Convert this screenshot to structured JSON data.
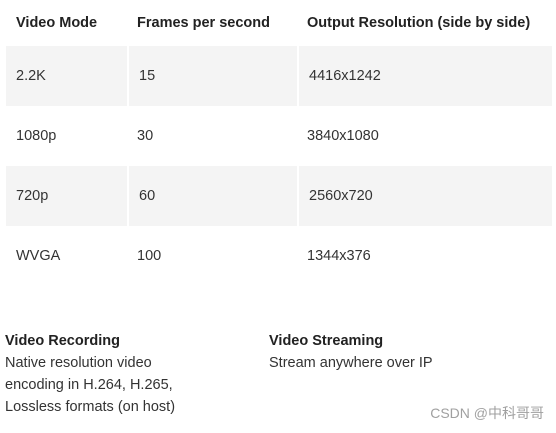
{
  "table": {
    "headers": [
      "Video Mode",
      "Frames per second",
      "Output Resolution (side by side)"
    ],
    "rows": [
      [
        "2.2K",
        "15",
        "4416x1242"
      ],
      [
        "1080p",
        "30",
        "3840x1080"
      ],
      [
        "720p",
        "60",
        "2560x720"
      ],
      [
        "WVGA",
        "100",
        "1344x376"
      ]
    ]
  },
  "features": {
    "recording": {
      "title": "Video Recording",
      "lines": [
        "Native resolution video",
        "encoding in H.264, H.265,",
        "Lossless formats (on host)"
      ]
    },
    "streaming": {
      "title": "Video Streaming",
      "lines": [
        "Stream anywhere over IP"
      ]
    }
  },
  "watermark": "CSDN @中科哥哥"
}
